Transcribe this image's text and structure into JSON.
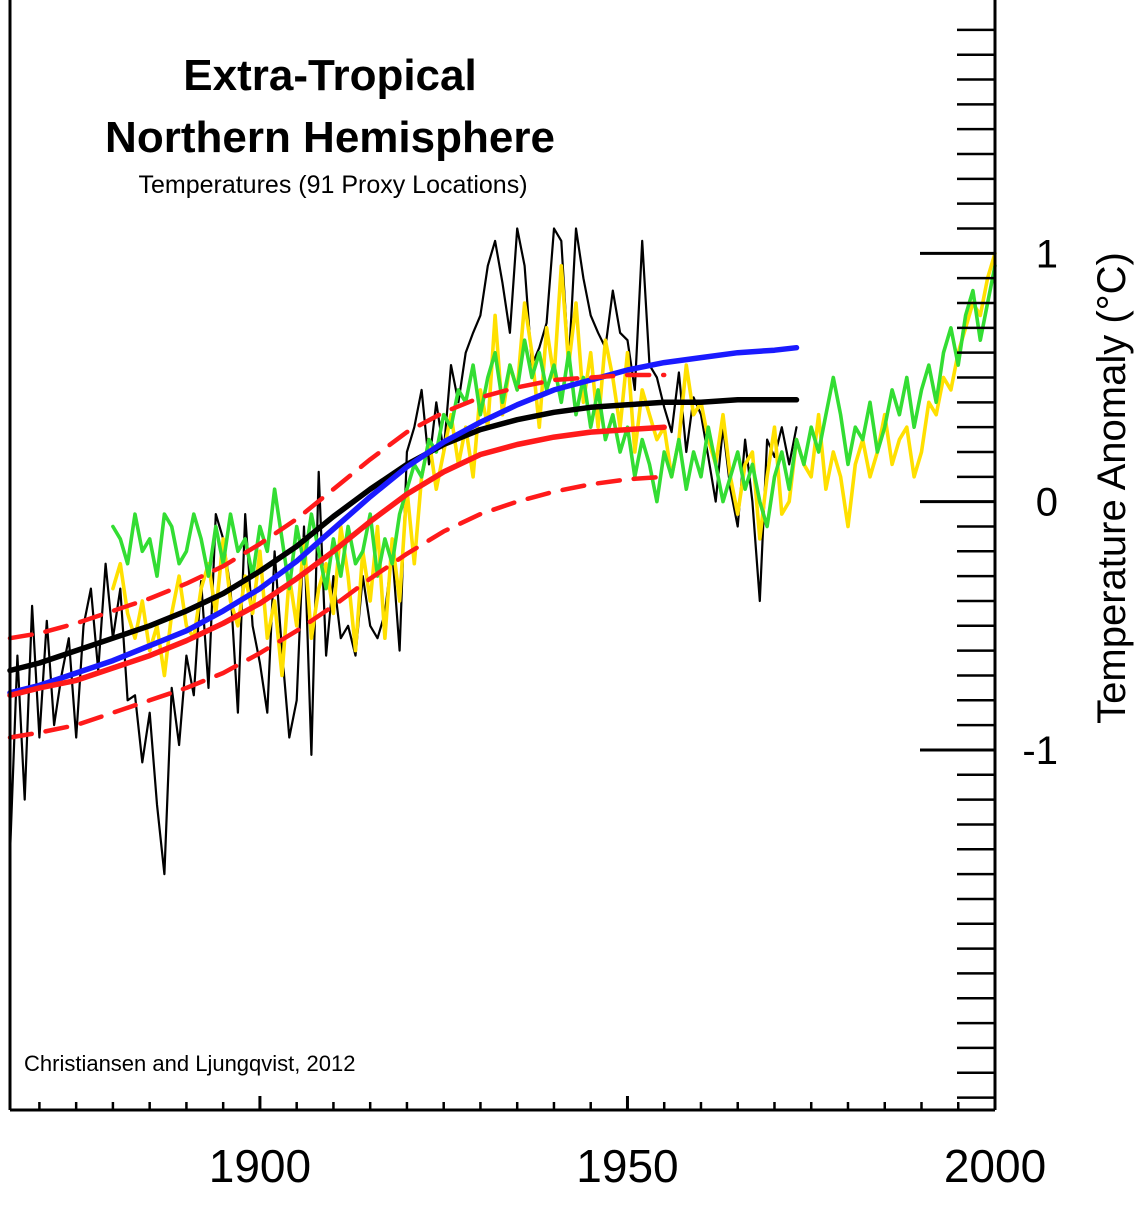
{
  "chart_data": {
    "type": "line",
    "title": "Extra-Tropical",
    "title_line2": "Northern Hemisphere",
    "subtitle": "Temperatures (91 Proxy Locations)",
    "credit": "Christiansen and Ljungqvist, 2012",
    "ylabel": "Temperature Anomaly (°C)",
    "xlim": [
      1866,
      2000
    ],
    "ylim": [
      -2.45,
      1.98
    ],
    "x_ticks": [
      1900,
      1950,
      2000
    ],
    "x_tick_labels": [
      "1900",
      "1950",
      "2000"
    ],
    "y_ticks": [
      -1,
      0,
      1
    ],
    "y_tick_labels": [
      "-1",
      "0",
      "1"
    ],
    "x_minor_step": 5,
    "y_minor_step": 0.1,
    "grid": false,
    "legend": "none",
    "series": [
      {
        "color": "#000000",
        "style": "thin",
        "x": [
          1866,
          1867,
          1868,
          1869,
          1870,
          1871,
          1872,
          1873,
          1874,
          1875,
          1876,
          1877,
          1878,
          1879,
          1880,
          1881,
          1882,
          1883,
          1884,
          1885,
          1886,
          1887,
          1888,
          1889,
          1890,
          1891,
          1892,
          1893,
          1894,
          1895,
          1896,
          1897,
          1898,
          1899,
          1900,
          1901,
          1902,
          1903,
          1904,
          1905,
          1906,
          1907,
          1908,
          1909,
          1910,
          1911,
          1912,
          1913,
          1914,
          1915,
          1916,
          1917,
          1918,
          1919,
          1920,
          1921,
          1922,
          1923,
          1924,
          1925,
          1926,
          1927,
          1928,
          1929,
          1930,
          1931,
          1932,
          1933,
          1934,
          1935,
          1936,
          1937,
          1938,
          1939,
          1940,
          1941,
          1942,
          1943,
          1944,
          1945,
          1946,
          1947,
          1948,
          1949,
          1950,
          1951,
          1952,
          1953,
          1954,
          1955,
          1956,
          1957,
          1958,
          1959,
          1960,
          1961,
          1962,
          1963,
          1964,
          1965,
          1966,
          1967,
          1968,
          1969,
          1970,
          1971,
          1972,
          1973
        ],
        "y": [
          -1.42,
          -0.62,
          -1.2,
          -0.42,
          -0.95,
          -0.48,
          -0.9,
          -0.7,
          -0.55,
          -0.95,
          -0.5,
          -0.35,
          -0.68,
          -0.25,
          -0.55,
          -0.35,
          -0.8,
          -0.78,
          -1.05,
          -0.85,
          -1.22,
          -1.5,
          -0.75,
          -0.98,
          -0.62,
          -0.78,
          -0.32,
          -0.75,
          -0.05,
          -0.15,
          -0.35,
          -0.85,
          -0.05,
          -0.5,
          -0.65,
          -0.85,
          -0.2,
          -0.6,
          -0.95,
          -0.8,
          -0.1,
          -1.02,
          0.12,
          -0.62,
          -0.3,
          -0.55,
          -0.5,
          -0.62,
          -0.3,
          -0.5,
          -0.55,
          -0.45,
          -0.2,
          -0.6,
          0.2,
          0.3,
          0.45,
          0.15,
          0.4,
          0.2,
          0.55,
          0.4,
          0.6,
          0.68,
          0.75,
          0.95,
          1.05,
          0.88,
          0.68,
          1.1,
          0.95,
          0.55,
          0.62,
          0.72,
          1.1,
          1.05,
          0.55,
          1.1,
          0.9,
          0.75,
          0.68,
          0.62,
          0.85,
          0.68,
          0.65,
          0.45,
          1.05,
          0.55,
          0.5,
          0.38,
          0.28,
          0.52,
          0.2,
          0.42,
          0.35,
          0.18,
          0.0,
          0.3,
          0.05,
          -0.1,
          0.25,
          0.0,
          -0.4,
          0.25,
          0.18,
          0.3,
          0.15,
          0.3
        ]
      },
      {
        "color": "#ffe000",
        "style": "medium",
        "x": [
          1880,
          1881,
          1882,
          1883,
          1884,
          1885,
          1886,
          1887,
          1888,
          1889,
          1890,
          1891,
          1892,
          1893,
          1894,
          1895,
          1896,
          1897,
          1898,
          1899,
          1900,
          1901,
          1902,
          1903,
          1904,
          1905,
          1906,
          1907,
          1908,
          1909,
          1910,
          1911,
          1912,
          1913,
          1914,
          1915,
          1916,
          1917,
          1918,
          1919,
          1920,
          1921,
          1922,
          1923,
          1924,
          1925,
          1926,
          1927,
          1928,
          1929,
          1930,
          1931,
          1932,
          1933,
          1934,
          1935,
          1936,
          1937,
          1938,
          1939,
          1940,
          1941,
          1942,
          1943,
          1944,
          1945,
          1946,
          1947,
          1948,
          1949,
          1950,
          1951,
          1952,
          1953,
          1954,
          1955,
          1956,
          1957,
          1958,
          1959,
          1960,
          1961,
          1962,
          1963,
          1964,
          1965,
          1966,
          1967,
          1968,
          1969,
          1970,
          1971,
          1972,
          1973,
          1974,
          1975,
          1976,
          1977,
          1978,
          1979,
          1980,
          1981,
          1982,
          1983,
          1984,
          1985,
          1986,
          1987,
          1988,
          1989,
          1990,
          1991,
          1992,
          1993,
          1994,
          1995,
          1996,
          1997,
          1998,
          1999,
          2000
        ],
        "y": [
          -0.35,
          -0.25,
          -0.45,
          -0.55,
          -0.4,
          -0.6,
          -0.5,
          -0.7,
          -0.45,
          -0.3,
          -0.5,
          -0.55,
          -0.35,
          -0.25,
          -0.45,
          -0.15,
          -0.4,
          -0.5,
          -0.3,
          -0.45,
          -0.2,
          -0.55,
          -0.4,
          -0.7,
          -0.3,
          -0.5,
          -0.15,
          -0.55,
          -0.35,
          -0.25,
          -0.45,
          -0.1,
          -0.3,
          -0.6,
          -0.2,
          -0.4,
          -0.1,
          -0.55,
          -0.15,
          -0.4,
          0.05,
          -0.25,
          0.1,
          0.25,
          0.05,
          0.2,
          0.35,
          0.15,
          0.3,
          0.1,
          0.45,
          0.3,
          0.75,
          0.35,
          0.55,
          0.45,
          0.8,
          0.6,
          0.3,
          0.7,
          0.5,
          0.95,
          0.55,
          0.8,
          0.4,
          0.6,
          0.3,
          0.65,
          0.5,
          0.3,
          0.6,
          0.2,
          0.45,
          0.35,
          0.25,
          0.3,
          0.1,
          0.25,
          0.55,
          0.35,
          0.4,
          0.25,
          0.15,
          0.35,
          0.1,
          -0.05,
          0.15,
          0.2,
          -0.15,
          0.1,
          0.3,
          -0.05,
          0.0,
          0.25,
          0.15,
          0.1,
          0.35,
          0.05,
          0.2,
          0.1,
          -0.1,
          0.15,
          0.25,
          0.1,
          0.2,
          0.35,
          0.15,
          0.25,
          0.3,
          0.1,
          0.2,
          0.4,
          0.35,
          0.5,
          0.45,
          0.6,
          0.7,
          0.8,
          0.75,
          0.9,
          1.0
        ]
      },
      {
        "color": "#33dd33",
        "style": "medium",
        "x": [
          1880,
          1881,
          1882,
          1883,
          1884,
          1885,
          1886,
          1887,
          1888,
          1889,
          1890,
          1891,
          1892,
          1893,
          1894,
          1895,
          1896,
          1897,
          1898,
          1899,
          1900,
          1901,
          1902,
          1903,
          1904,
          1905,
          1906,
          1907,
          1908,
          1909,
          1910,
          1911,
          1912,
          1913,
          1914,
          1915,
          1916,
          1917,
          1918,
          1919,
          1920,
          1921,
          1922,
          1923,
          1924,
          1925,
          1926,
          1927,
          1928,
          1929,
          1930,
          1931,
          1932,
          1933,
          1934,
          1935,
          1936,
          1937,
          1938,
          1939,
          1940,
          1941,
          1942,
          1943,
          1944,
          1945,
          1946,
          1947,
          1948,
          1949,
          1950,
          1951,
          1952,
          1953,
          1954,
          1955,
          1956,
          1957,
          1958,
          1959,
          1960,
          1961,
          1962,
          1963,
          1964,
          1965,
          1966,
          1967,
          1968,
          1969,
          1970,
          1971,
          1972,
          1973,
          1974,
          1975,
          1976,
          1977,
          1978,
          1979,
          1980,
          1981,
          1982,
          1983,
          1984,
          1985,
          1986,
          1987,
          1988,
          1989,
          1990,
          1991,
          1992,
          1993,
          1994,
          1995,
          1996,
          1997,
          1998,
          1999,
          2000
        ],
        "y": [
          -0.1,
          -0.15,
          -0.25,
          -0.05,
          -0.2,
          -0.15,
          -0.3,
          -0.05,
          -0.1,
          -0.25,
          -0.2,
          -0.05,
          -0.15,
          -0.3,
          -0.1,
          -0.25,
          -0.05,
          -0.2,
          -0.15,
          -0.3,
          -0.1,
          -0.2,
          0.05,
          -0.15,
          -0.35,
          -0.1,
          -0.25,
          -0.05,
          -0.2,
          -0.35,
          -0.15,
          -0.3,
          -0.1,
          -0.25,
          -0.2,
          -0.05,
          -0.3,
          -0.15,
          -0.25,
          -0.05,
          0.05,
          0.15,
          0.1,
          0.25,
          0.2,
          0.35,
          0.3,
          0.45,
          0.4,
          0.55,
          0.35,
          0.5,
          0.6,
          0.4,
          0.55,
          0.45,
          0.65,
          0.5,
          0.6,
          0.45,
          0.55,
          0.4,
          0.6,
          0.35,
          0.5,
          0.3,
          0.45,
          0.25,
          0.35,
          0.2,
          0.3,
          0.1,
          0.25,
          0.15,
          0.0,
          0.2,
          0.1,
          0.25,
          0.05,
          0.2,
          0.1,
          0.3,
          0.15,
          0.0,
          0.1,
          0.2,
          0.05,
          0.15,
          0.0,
          -0.1,
          0.1,
          0.2,
          0.05,
          0.25,
          0.15,
          0.3,
          0.2,
          0.35,
          0.5,
          0.35,
          0.15,
          0.3,
          0.25,
          0.4,
          0.2,
          0.3,
          0.45,
          0.35,
          0.5,
          0.3,
          0.45,
          0.55,
          0.4,
          0.6,
          0.7,
          0.55,
          0.75,
          0.85,
          0.65,
          0.8,
          0.95
        ]
      },
      {
        "color": "#000000",
        "style": "thick",
        "x": [
          1866,
          1870,
          1875,
          1880,
          1885,
          1890,
          1895,
          1900,
          1905,
          1910,
          1915,
          1920,
          1925,
          1930,
          1935,
          1940,
          1945,
          1950,
          1955,
          1960,
          1965,
          1970,
          1973
        ],
        "y": [
          -0.68,
          -0.65,
          -0.6,
          -0.55,
          -0.5,
          -0.44,
          -0.37,
          -0.28,
          -0.18,
          -0.06,
          0.05,
          0.15,
          0.23,
          0.29,
          0.33,
          0.36,
          0.38,
          0.39,
          0.4,
          0.4,
          0.41,
          0.41,
          0.41
        ]
      },
      {
        "color": "#1a1aff",
        "style": "thick",
        "x": [
          1866,
          1870,
          1875,
          1880,
          1885,
          1890,
          1895,
          1900,
          1905,
          1910,
          1915,
          1920,
          1925,
          1930,
          1935,
          1940,
          1945,
          1950,
          1955,
          1960,
          1965,
          1970,
          1973
        ],
        "y": [
          -0.77,
          -0.74,
          -0.69,
          -0.64,
          -0.58,
          -0.52,
          -0.44,
          -0.35,
          -0.24,
          -0.11,
          0.02,
          0.14,
          0.24,
          0.32,
          0.39,
          0.45,
          0.49,
          0.53,
          0.56,
          0.58,
          0.6,
          0.61,
          0.62
        ]
      },
      {
        "color": "#ff1a1a",
        "style": "thick",
        "x": [
          1866,
          1870,
          1875,
          1880,
          1885,
          1890,
          1895,
          1900,
          1905,
          1910,
          1915,
          1920,
          1925,
          1930,
          1935,
          1940,
          1945,
          1950,
          1955
        ],
        "y": [
          -0.78,
          -0.75,
          -0.72,
          -0.67,
          -0.62,
          -0.56,
          -0.49,
          -0.41,
          -0.31,
          -0.2,
          -0.08,
          0.03,
          0.12,
          0.19,
          0.23,
          0.26,
          0.28,
          0.29,
          0.3
        ]
      },
      {
        "color": "#ff1a1a",
        "style": "dashed",
        "x": [
          1866,
          1870,
          1875,
          1880,
          1885,
          1890,
          1895,
          1900,
          1905,
          1910,
          1915,
          1920,
          1925,
          1930,
          1935,
          1940,
          1945,
          1950,
          1955
        ],
        "y": [
          -0.55,
          -0.53,
          -0.49,
          -0.44,
          -0.39,
          -0.33,
          -0.26,
          -0.17,
          -0.07,
          0.05,
          0.17,
          0.28,
          0.36,
          0.42,
          0.46,
          0.49,
          0.5,
          0.51,
          0.51
        ]
      },
      {
        "color": "#ff1a1a",
        "style": "dashed",
        "x": [
          1866,
          1870,
          1875,
          1880,
          1885,
          1890,
          1895,
          1900,
          1905,
          1910,
          1915,
          1920,
          1925,
          1930,
          1935,
          1940,
          1945,
          1950,
          1955
        ],
        "y": [
          -0.95,
          -0.93,
          -0.9,
          -0.85,
          -0.8,
          -0.75,
          -0.69,
          -0.61,
          -0.52,
          -0.42,
          -0.31,
          -0.21,
          -0.12,
          -0.05,
          0.0,
          0.04,
          0.07,
          0.09,
          0.1
        ]
      }
    ]
  }
}
